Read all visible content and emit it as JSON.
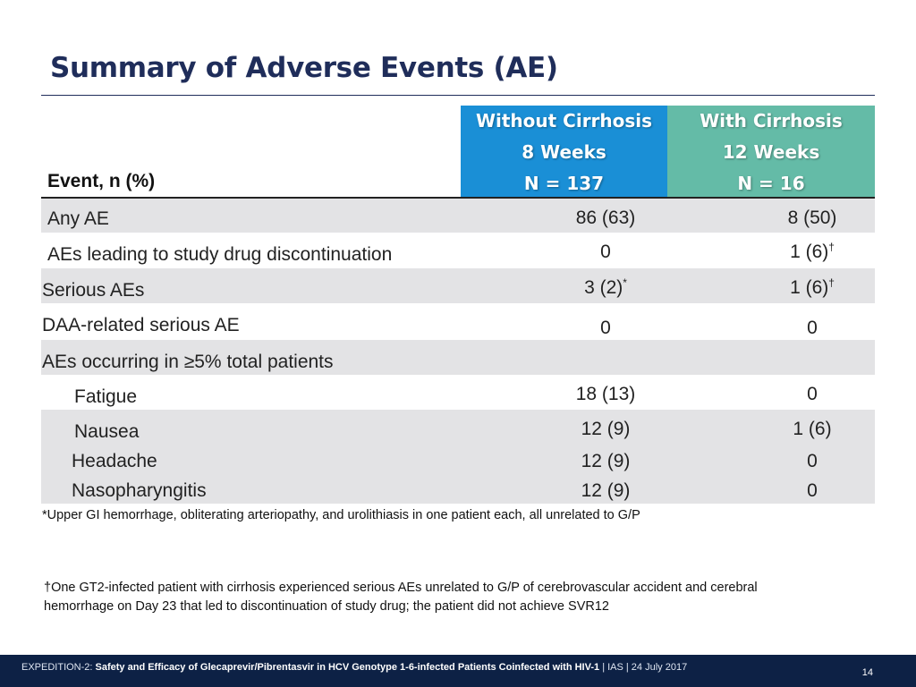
{
  "title": "Summary of Adverse Events (AE)",
  "table": {
    "event_header": "Event, n (%)",
    "columns": [
      {
        "line1": "Without Cirrhosis",
        "line2": "8 Weeks",
        "line3": "N = 137",
        "color": "#1a8fd6"
      },
      {
        "line1": "With Cirrhosis",
        "line2": "12 Weeks",
        "line3": "N = 16",
        "color": "#64bba7"
      }
    ],
    "rows": [
      {
        "label": "Any AE",
        "c1": "86 (63)",
        "c1_sup": "",
        "c2": "8 (50)",
        "c2_sup": ""
      },
      {
        "label_a": "AEs",
        "label_b": " leading to study drug discontinuation",
        "c1": "0",
        "c1_sup": "",
        "c2": "1 (6)",
        "c2_sup": "†"
      },
      {
        "label": "Serious AEs",
        "c1": "3 (2)",
        "c1_sup": "*",
        "c2": "1 (6)",
        "c2_sup": "†"
      },
      {
        "label": "DAA-related serious AE",
        "c1": "0",
        "c1_sup": "",
        "c2": "0",
        "c2_sup": ""
      },
      {
        "label": "AEs occurring in ≥5% total patients",
        "c1": "",
        "c1_sup": "",
        "c2": "",
        "c2_sup": ""
      },
      {
        "label": "Fatigue",
        "c1": "18 (13)",
        "c1_sup": "",
        "c2": "0",
        "c2_sup": ""
      },
      {
        "label": "Nausea",
        "c1": "12 (9)",
        "c1_sup": "",
        "c2": "1 (6)",
        "c2_sup": ""
      },
      {
        "label": "Headache",
        "c1": "12 (9)",
        "c1_sup": "",
        "c2": "0",
        "c2_sup": ""
      },
      {
        "label": "Nasopharyngitis",
        "c1": "12 (9)",
        "c1_sup": "",
        "c2": "0",
        "c2_sup": ""
      }
    ]
  },
  "footnotes": {
    "star": "*Upper GI hemorrhage, obliterating arteriopathy, and urolithiasis in one patient each, all unrelated to G/P",
    "dagger_line1": "†One GT2-infected patient with cirrhosis experienced serious AEs unrelated to G/P of cerebrovascular accident and cerebral",
    "dagger_line2": "hemorrhage on Day 23 that led to discontinuation of study drug; the patient did not achieve SVR12"
  },
  "footer": {
    "prefix": "EXPEDITION-2: ",
    "study": "Safety and Efficacy of Glecaprevir/Pibrentasvir in HCV Genotype 1-6-infected Patients Coinfected with HIV-1",
    "suffix": " | IAS | 24 July 2017",
    "page": "14"
  }
}
